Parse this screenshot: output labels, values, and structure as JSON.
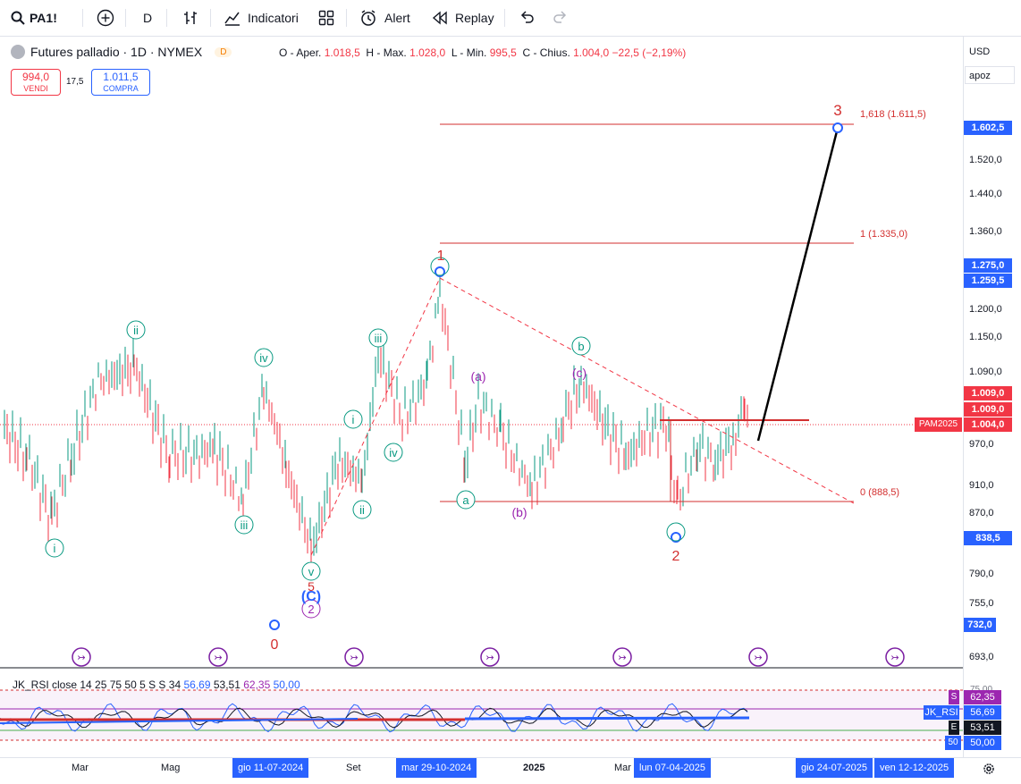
{
  "toolbar": {
    "symbol": "PA1!",
    "interval": "D",
    "indicators_label": "Indicatori",
    "alert_label": "Alert",
    "replay_label": "Replay"
  },
  "legend": {
    "title": "Futures palladio · 1D · NYMEX",
    "badge": "D",
    "open_label": "O - Aper.",
    "open": "1.018,5",
    "high_label": "H - Max.",
    "high": "1.028,0",
    "low_label": "L - Min.",
    "low": "995,5",
    "close_label": "C - Chius.",
    "close": "1.004,0",
    "change": "−22,5 (−2,19%)",
    "sell_price": "994,0",
    "sell_label": "VENDI",
    "spread": "17,5",
    "buy_price": "1.011,5",
    "buy_label": "COMPRA"
  },
  "price_axis": {
    "currency": "USD",
    "mode": "apoz",
    "ticks": [
      "1.602,5",
      "1.520,0",
      "1.440,0",
      "1.360,0",
      "1.275,0",
      "1.259,5",
      "1.200,0",
      "1.150,0",
      "1.090,0",
      "1.009,0",
      "1.009,0",
      "1.004,0",
      "970,0",
      "910,0",
      "870,0",
      "838,5",
      "790,0",
      "755,0",
      "732,0",
      "693,0"
    ],
    "pam_tag": "PAM2025"
  },
  "fib_labels": {
    "f1618": "1,618 (1.611,5)",
    "f1": "1 (1.335,0)",
    "f0": "0 (888,5)"
  },
  "wave_labels": {
    "w0": "0",
    "w1": "1",
    "w2": "2",
    "w3": "3",
    "w5": "5",
    "wi": "i",
    "wii": "ii",
    "wiii": "iii",
    "wiv": "iv",
    "wv": "v",
    "wa": "a",
    "wb": "b",
    "wpa": "(a)",
    "wpb": "(b)",
    "wpc": "(c)",
    "wC": "(C)",
    "w2c": "2"
  },
  "rsi": {
    "label": "JK_RSI close 14 25 75 50 5 S S 34",
    "v1": "56,69",
    "v2": "53,51",
    "v3": "62,35",
    "v4": "50,00",
    "tag_s": "S",
    "tag_name": "JK_RSI",
    "tag_e": "E",
    "tag_50": "50",
    "axis_top": "75,00"
  },
  "time_axis": {
    "labels": [
      "Mar",
      "Mag",
      "Set",
      "2025",
      "Mar"
    ],
    "tag1": "gio 11-07-2024",
    "tag2": "mar 29-10-2024",
    "tag3": "lun 07-04-2025",
    "tag4": "gio 24-07-2025",
    "tag5": "ven 12-12-2025"
  },
  "colors": {
    "up": "#089981",
    "down": "#f23645",
    "accent": "#2962ff",
    "wave_green": "#089981",
    "wave_red": "#d32f2f",
    "wave_purple": "#9c27b0",
    "fib": "#d32f2f"
  }
}
